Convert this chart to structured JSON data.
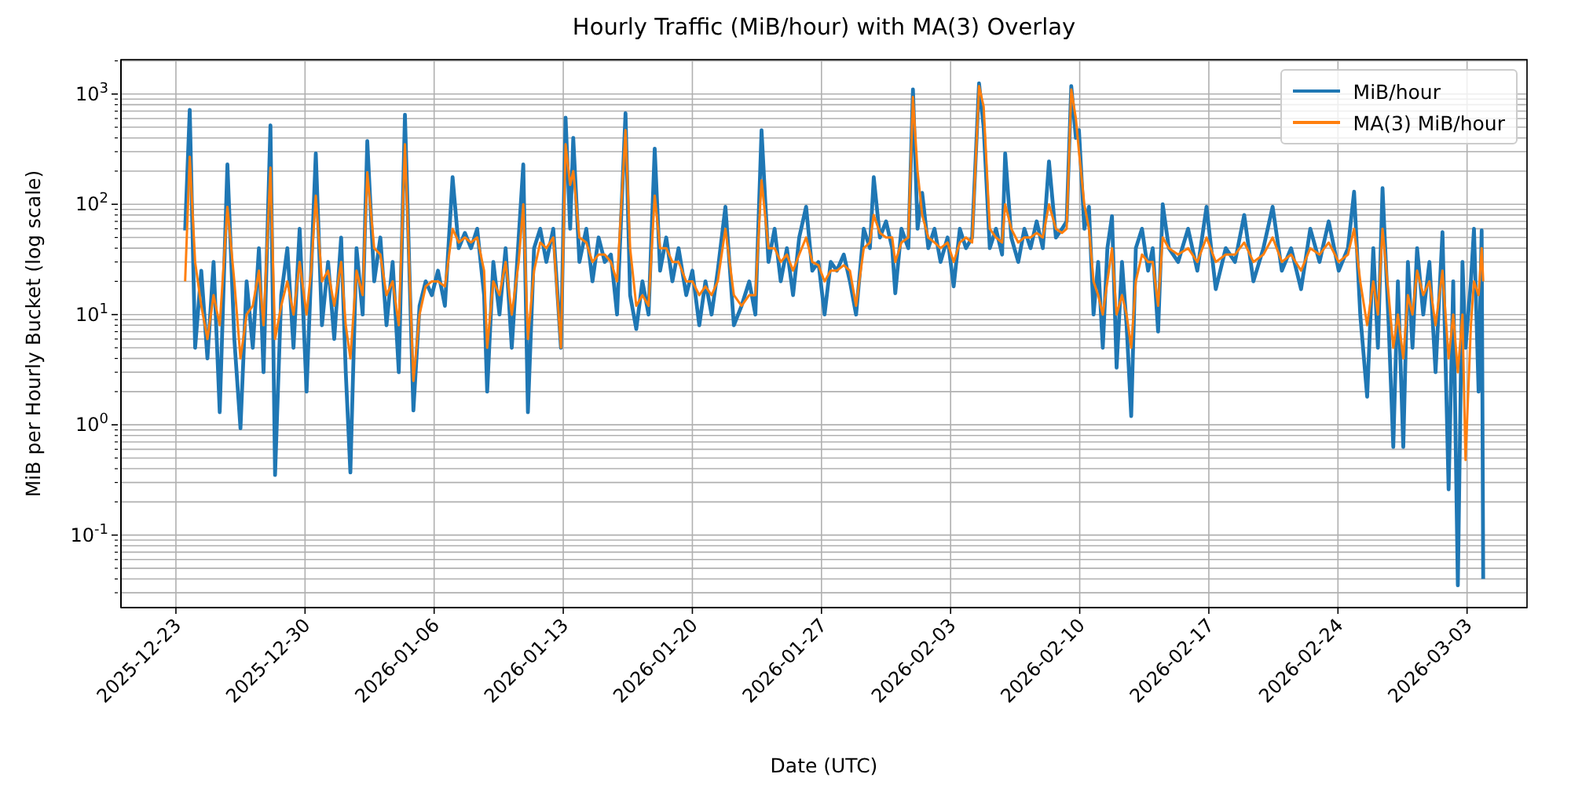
{
  "chart_data": {
    "type": "line",
    "title": "Hourly Traffic (MiB/hour) with MA(3) Overlay",
    "xlabel": "Date (UTC)",
    "ylabel": "MiB per Hourly Bucket (log scale)",
    "log": "y",
    "grid": true,
    "legend": "top right",
    "marker": "none",
    "line_style": "solid",
    "xlim": [
      "2025-12-20T00:30",
      "2026-03-06T06:00"
    ],
    "xticks": [
      "2025-12-23",
      "2025-12-30",
      "2026-01-06",
      "2026-01-13",
      "2026-01-20",
      "2026-01-27",
      "2026-02-03",
      "2026-02-10",
      "2026-02-17",
      "2026-02-24",
      "2026-03-03"
    ],
    "ylim": [
      0.022,
      2050
    ],
    "yticks": [
      {
        "value": 0.03,
        "label": null
      },
      {
        "value": 0.04,
        "label": null
      },
      {
        "value": 0.05,
        "label": null
      },
      {
        "value": 0.06,
        "label": null
      },
      {
        "value": 0.07,
        "label": null
      },
      {
        "value": 0.08,
        "label": null
      },
      {
        "value": 0.09,
        "label": null
      },
      {
        "value": 0.1,
        "label": "10$^{-1}$"
      },
      {
        "value": 0.2,
        "label": null
      },
      {
        "value": 0.3,
        "label": null
      },
      {
        "value": 0.4,
        "label": null
      },
      {
        "value": 0.5,
        "label": null
      },
      {
        "value": 0.6,
        "label": null
      },
      {
        "value": 0.7,
        "label": null
      },
      {
        "value": 0.8,
        "label": null
      },
      {
        "value": 0.9,
        "label": null
      },
      {
        "value": 1,
        "label": "10$^{0}$"
      },
      {
        "value": 2,
        "label": null
      },
      {
        "value": 3,
        "label": null
      },
      {
        "value": 4,
        "label": null
      },
      {
        "value": 5,
        "label": null
      },
      {
        "value": 6,
        "label": null
      },
      {
        "value": 7,
        "label": null
      },
      {
        "value": 8,
        "label": null
      },
      {
        "value": 9,
        "label": null
      },
      {
        "value": 10,
        "label": "10$^{1}$"
      },
      {
        "value": 20,
        "label": null
      },
      {
        "value": 30,
        "label": null
      },
      {
        "value": 40,
        "label": null
      },
      {
        "value": 50,
        "label": null
      },
      {
        "value": 60,
        "label": null
      },
      {
        "value": 70,
        "label": null
      },
      {
        "value": 80,
        "label": null
      },
      {
        "value": 90,
        "label": null
      },
      {
        "value": 100,
        "label": "10$^{2}$"
      },
      {
        "value": 200,
        "label": null
      },
      {
        "value": 300,
        "label": null
      },
      {
        "value": 400,
        "label": null
      },
      {
        "value": 500,
        "label": null
      },
      {
        "value": 600,
        "label": null
      },
      {
        "value": 700,
        "label": null
      },
      {
        "value": 800,
        "label": null
      },
      {
        "value": 900,
        "label": null
      },
      {
        "value": 1000,
        "label": "10$^{3}$"
      },
      {
        "value": 2000,
        "label": null
      }
    ],
    "x": [
      "2025-12-23T12:00",
      "2025-12-23T18:00",
      "2025-12-24T01:00",
      "2025-12-24T09:00",
      "2025-12-24T17:00",
      "2025-12-25T01:00",
      "2025-12-25T09:00",
      "2025-12-25T19:00",
      "2025-12-26T04:00",
      "2025-12-26T12:00",
      "2025-12-26T20:00",
      "2025-12-27T04:00",
      "2025-12-27T12:00",
      "2025-12-27T18:00",
      "2025-12-28T03:00",
      "2025-12-28T09:00",
      "2025-12-28T17:00",
      "2025-12-29T01:00",
      "2025-12-29T09:00",
      "2025-12-29T17:00",
      "2025-12-30T02:00",
      "2025-12-30T08:00",
      "2025-12-30T14:00",
      "2025-12-30T22:00",
      "2025-12-31T06:00",
      "2025-12-31T14:00",
      "2025-12-31T23:00",
      "2026-01-01T05:00",
      "2026-01-01T11:00",
      "2026-01-01T19:00",
      "2026-01-02T03:00",
      "2026-01-02T09:00",
      "2026-01-02T18:00",
      "2026-01-03T02:00",
      "2026-01-03T10:00",
      "2026-01-03T18:00",
      "2026-01-04T02:00",
      "2026-01-04T10:00",
      "2026-01-04T21:00",
      "2026-01-05T05:00",
      "2026-01-05T13:00",
      "2026-01-05T21:00",
      "2026-01-06T05:00",
      "2026-01-06T14:00",
      "2026-01-07T00:00",
      "2026-01-07T08:00",
      "2026-01-07T16:00",
      "2026-01-08T00:00",
      "2026-01-08T08:00",
      "2026-01-08T17:00",
      "2026-01-08T21:00",
      "2026-01-09T05:00",
      "2026-01-09T13:00",
      "2026-01-09T21:00",
      "2026-01-10T05:00",
      "2026-01-10T14:00",
      "2026-01-10T20:00",
      "2026-01-11T02:00",
      "2026-01-11T10:00",
      "2026-01-11T18:00",
      "2026-01-12T02:00",
      "2026-01-12T11:00",
      "2026-01-12T21:00",
      "2026-01-13T03:00",
      "2026-01-13T09:00",
      "2026-01-13T13:00",
      "2026-01-13T21:00",
      "2026-01-14T06:00",
      "2026-01-14T14:00",
      "2026-01-14T22:00",
      "2026-01-15T06:00",
      "2026-01-15T14:00",
      "2026-01-15T22:00",
      "2026-01-16T09:00",
      "2026-01-16T15:00",
      "2026-01-16T23:00",
      "2026-01-17T07:00",
      "2026-01-17T15:00",
      "2026-01-17T23:00",
      "2026-01-18T06:00",
      "2026-01-18T14:00",
      "2026-01-18T22:00",
      "2026-01-19T06:00",
      "2026-01-19T16:00",
      "2026-01-20T00:00",
      "2026-01-20T09:00",
      "2026-01-20T17:00",
      "2026-01-21T01:00",
      "2026-01-21T09:00",
      "2026-01-21T19:00",
      "2026-01-22T06:00",
      "2026-01-22T16:00",
      "2026-01-23T02:00",
      "2026-01-23T10:00",
      "2026-01-23T18:00",
      "2026-01-24T03:00",
      "2026-01-24T11:00",
      "2026-01-24T19:00",
      "2026-01-25T03:00",
      "2026-01-25T11:00",
      "2026-01-25T19:00",
      "2026-01-26T04:00",
      "2026-01-26T12:00",
      "2026-01-26T20:00",
      "2026-01-27T04:00",
      "2026-01-27T12:00",
      "2026-01-27T20:00",
      "2026-01-28T05:00",
      "2026-01-28T13:00",
      "2026-01-28T21:00",
      "2026-01-29T07:00",
      "2026-01-29T15:00",
      "2026-01-29T20:00",
      "2026-01-30T04:00",
      "2026-01-30T12:00",
      "2026-01-30T20:00",
      "2026-01-31T00:00",
      "2026-01-31T08:00",
      "2026-01-31T17:00",
      "2026-01-31T23:00",
      "2026-02-01T05:00",
      "2026-02-01T11:00",
      "2026-02-01T19:00",
      "2026-02-02T03:00",
      "2026-02-02T11:00",
      "2026-02-02T20:00",
      "2026-02-03T04:00",
      "2026-02-03T12:00",
      "2026-02-03T20:00",
      "2026-02-04T04:00",
      "2026-02-04T13:00",
      "2026-02-04T19:00",
      "2026-02-05T03:00",
      "2026-02-05T11:00",
      "2026-02-05T19:00",
      "2026-02-05T23:00",
      "2026-02-06T07:00",
      "2026-02-06T16:00",
      "2026-02-07T00:00",
      "2026-02-07T08:00",
      "2026-02-07T16:00",
      "2026-02-08T00:00",
      "2026-02-08T08:00",
      "2026-02-08T17:00",
      "2026-02-09T01:00",
      "2026-02-09T07:00",
      "2026-02-09T13:00",
      "2026-02-09T19:00",
      "2026-02-09T23:00",
      "2026-02-10T06:00",
      "2026-02-10T12:00",
      "2026-02-10T18:00",
      "2026-02-11T00:00",
      "2026-02-11T06:00",
      "2026-02-11T12:00",
      "2026-02-11T18:00",
      "2026-02-12T00:00",
      "2026-02-12T07:00",
      "2026-02-12T13:00",
      "2026-02-12T19:00",
      "2026-02-13T01:00",
      "2026-02-13T09:00",
      "2026-02-13T17:00",
      "2026-02-13T23:00",
      "2026-02-14T06:00",
      "2026-02-14T12:00",
      "2026-02-14T20:00",
      "2026-02-15T08:00",
      "2026-02-15T21:00",
      "2026-02-16T09:00",
      "2026-02-16T21:00",
      "2026-02-17T09:00",
      "2026-02-17T22:00",
      "2026-02-18T10:00",
      "2026-02-18T22:00",
      "2026-02-19T10:00",
      "2026-02-19T23:00",
      "2026-02-20T11:00",
      "2026-02-20T23:00",
      "2026-02-21T11:00",
      "2026-02-22T00:00",
      "2026-02-22T12:00",
      "2026-02-23T00:00",
      "2026-02-23T12:00",
      "2026-02-24T01:00",
      "2026-02-24T13:00",
      "2026-02-24T21:00",
      "2026-02-25T05:00",
      "2026-02-25T14:00",
      "2026-02-25T22:00",
      "2026-02-26T04:00",
      "2026-02-26T10:00",
      "2026-02-26T18:00",
      "2026-02-27T00:00",
      "2026-02-27T06:00",
      "2026-02-27T13:00",
      "2026-02-27T19:00",
      "2026-02-28T01:00",
      "2026-02-28T07:00",
      "2026-02-28T15:00",
      "2026-02-28T23:00",
      "2026-03-01T07:00",
      "2026-03-01T16:00",
      "2026-03-02T00:00",
      "2026-03-02T06:00",
      "2026-03-02T12:00",
      "2026-03-02T18:00",
      "2026-03-02T22:00",
      "2026-03-03T05:00",
      "2026-03-03T09:00",
      "2026-03-03T15:00",
      "2026-03-03T19:00",
      "2026-03-03T21:00"
    ],
    "series": [
      {
        "name": "MiB/hour",
        "color": "#1f77b4",
        "values": [
          58,
          720,
          5,
          25,
          4,
          30,
          1.3,
          230,
          6,
          0.93,
          20,
          5,
          40,
          3,
          520,
          0.35,
          15,
          40,
          5,
          60,
          2,
          25,
          290,
          8,
          30,
          6,
          50,
          3,
          0.37,
          40,
          10,
          375,
          20,
          50,
          8,
          30,
          3,
          650,
          1.35,
          12,
          20,
          15,
          25,
          12,
          176,
          40,
          55,
          40,
          60,
          15,
          2,
          30,
          10,
          40,
          5,
          50,
          230,
          1.3,
          40,
          60,
          30,
          60,
          5,
          610,
          60,
          400,
          30,
          60,
          20,
          50,
          30,
          35,
          10,
          670,
          15,
          7.4,
          20,
          10,
          320,
          25,
          50,
          20,
          40,
          15,
          25,
          8,
          20,
          10,
          25,
          95,
          8,
          12,
          20,
          10,
          470,
          30,
          60,
          20,
          40,
          15,
          50,
          95,
          25,
          30,
          10,
          30,
          25,
          35,
          20,
          10,
          60,
          40,
          176,
          50,
          70,
          40,
          15.6,
          60,
          40,
          1100,
          60,
          127,
          40,
          60,
          30,
          50,
          18,
          60,
          40,
          50,
          1250,
          500,
          40,
          60,
          35,
          290,
          50,
          30,
          60,
          40,
          70,
          40,
          245,
          50,
          60,
          70,
          1180,
          400,
          470,
          60,
          95,
          10,
          30,
          5,
          40,
          78,
          3.3,
          30,
          8,
          1.2,
          40,
          60,
          25,
          40,
          7,
          100,
          40,
          30,
          60,
          25,
          95,
          17,
          40,
          30,
          80,
          20,
          40,
          95,
          25,
          40,
          17,
          60,
          30,
          70,
          25,
          40,
          130,
          10,
          1.8,
          40,
          5,
          140,
          8,
          0.63,
          20,
          0.63,
          30,
          5,
          40,
          10,
          30,
          3,
          56,
          0.26,
          20,
          0.035,
          30,
          5,
          20,
          60,
          2,
          58,
          0.04
        ]
      },
      {
        "name": "MA(3) MiB/hour",
        "color": "#ff7f0e",
        "values": [
          20,
          270,
          30,
          12,
          6,
          15,
          8,
          95,
          20,
          4,
          10,
          12,
          25,
          8,
          215,
          6,
          12,
          20,
          10,
          30,
          10,
          25,
          120,
          20,
          25,
          12,
          30,
          8,
          4,
          25,
          15,
          195,
          40,
          35,
          15,
          20,
          8,
          350,
          2.5,
          10,
          18,
          20,
          20,
          18,
          60,
          45,
          50,
          45,
          50,
          25,
          5,
          20,
          15,
          30,
          10,
          30,
          100,
          6,
          25,
          45,
          40,
          50,
          5,
          350,
          150,
          200,
          50,
          45,
          30,
          35,
          35,
          30,
          20,
          470,
          40,
          12,
          15,
          12,
          120,
          40,
          40,
          30,
          30,
          20,
          20,
          15,
          18,
          15,
          20,
          60,
          15,
          12,
          15,
          15,
          165,
          40,
          40,
          30,
          35,
          25,
          35,
          50,
          30,
          28,
          20,
          25,
          25,
          28,
          25,
          12,
          40,
          45,
          80,
          55,
          50,
          50,
          30,
          45,
          50,
          940,
          200,
          80,
          50,
          45,
          40,
          45,
          30,
          45,
          50,
          45,
          1180,
          770,
          60,
          50,
          45,
          100,
          60,
          45,
          50,
          50,
          55,
          50,
          100,
          60,
          55,
          60,
          1100,
          600,
          300,
          100,
          60,
          20,
          15,
          10,
          20,
          40,
          10,
          15,
          10,
          5,
          20,
          35,
          30,
          30,
          12,
          50,
          40,
          35,
          40,
          30,
          50,
          30,
          35,
          35,
          45,
          30,
          35,
          50,
          30,
          35,
          25,
          40,
          35,
          45,
          30,
          35,
          60,
          20,
          8,
          20,
          10,
          60,
          15,
          5,
          10,
          4,
          15,
          10,
          25,
          15,
          20,
          8,
          25,
          4,
          10,
          3,
          10,
          0.48,
          8,
          20,
          15,
          40,
          20
        ]
      }
    ]
  }
}
